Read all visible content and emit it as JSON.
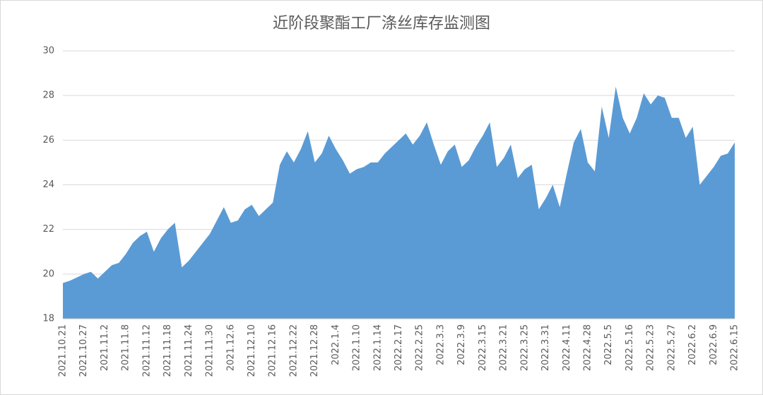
{
  "chart_data": {
    "type": "area",
    "title": "近阶段聚酯工厂涤丝库存监测图",
    "categories": [
      "2021.10.21",
      null,
      null,
      "2021.10.27",
      null,
      null,
      "2021.11.2",
      null,
      null,
      "2021.11.8",
      null,
      null,
      "2021.11.12",
      null,
      null,
      "2021.11.18",
      null,
      null,
      "2021.11.24",
      null,
      null,
      "2021.11.30",
      null,
      null,
      "2021.12.6",
      null,
      null,
      "2021.12.10",
      null,
      null,
      "2021.12.16",
      null,
      null,
      "2021.12.22",
      null,
      null,
      "2021.12.28",
      null,
      null,
      "2022.1.4",
      null,
      null,
      "2022.1.10",
      null,
      null,
      "2022.1.14",
      null,
      null,
      "2022.2.17",
      null,
      null,
      "2022.2.25",
      null,
      null,
      "2022.3.3",
      null,
      null,
      "2022.3.9",
      null,
      null,
      "2022.3.15",
      null,
      null,
      "2022.3.21",
      null,
      null,
      "2022.3.25",
      null,
      null,
      "2022.3.31",
      null,
      null,
      "2022.4.11",
      null,
      null,
      "2022.4.28",
      null,
      null,
      "2022.5.5",
      null,
      null,
      "2022.5.16",
      null,
      null,
      "2022.5.23",
      null,
      null,
      "2022.5.27",
      null,
      null,
      "2022.6.2",
      null,
      null,
      "2022.6.9",
      null,
      null,
      "2022.6.15"
    ],
    "values": [
      19.6,
      19.7,
      19.85,
      20.0,
      20.1,
      19.8,
      20.1,
      20.4,
      20.5,
      20.9,
      21.4,
      21.7,
      21.9,
      21.0,
      21.6,
      22.0,
      22.3,
      20.3,
      20.6,
      21.0,
      21.4,
      21.8,
      22.4,
      23.0,
      22.3,
      22.4,
      22.9,
      23.1,
      22.6,
      22.9,
      23.2,
      24.9,
      25.5,
      25.0,
      25.6,
      26.4,
      25.0,
      25.4,
      26.2,
      25.6,
      25.1,
      24.5,
      24.7,
      24.8,
      25.0,
      25.0,
      25.4,
      25.7,
      26.0,
      26.3,
      25.8,
      26.2,
      26.8,
      25.8,
      24.9,
      25.5,
      25.8,
      24.8,
      25.1,
      25.7,
      26.2,
      26.8,
      24.8,
      25.2,
      25.8,
      24.3,
      24.7,
      24.9,
      22.9,
      23.4,
      24.0,
      23.0,
      24.5,
      25.9,
      26.5,
      25.0,
      24.6,
      27.5,
      26.1,
      28.4,
      27.0,
      26.3,
      27.0,
      28.1,
      27.6,
      28.0,
      27.9,
      27.0,
      27.0,
      26.1,
      26.6,
      24.0,
      24.4,
      24.8,
      25.3,
      25.4,
      25.9
    ],
    "color": "#5b9bd5",
    "ylim": [
      18,
      30
    ],
    "yticks": [
      18,
      20,
      22,
      24,
      26,
      28,
      30
    ],
    "grid": true
  }
}
